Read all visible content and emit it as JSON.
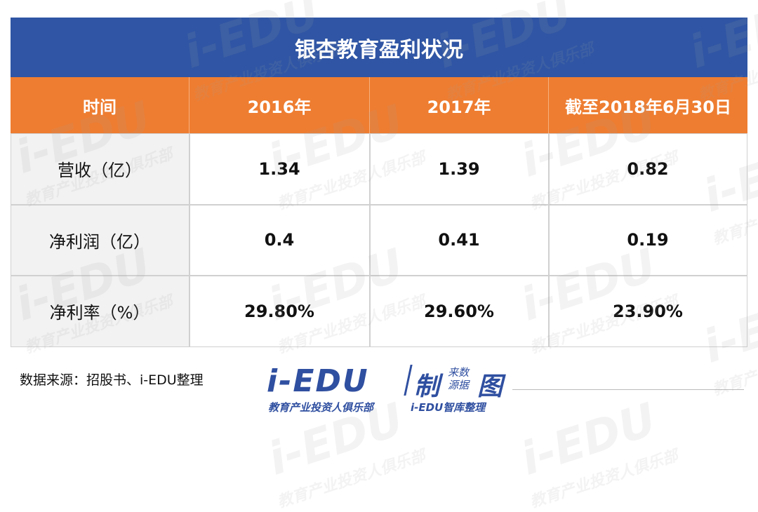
{
  "watermark": {
    "brand": "i-EDU",
    "club": "教育产业投资人俱乐部"
  },
  "table": {
    "title": "银杏教育盈利状况",
    "header": [
      "时间",
      "2016年",
      "2017年",
      "截至2018年6月30日"
    ],
    "rows": [
      [
        "营收（亿）",
        "1.34",
        "1.39",
        "0.82"
      ],
      [
        "净利润（亿）",
        "0.4",
        "0.41",
        "0.19"
      ],
      [
        "净利率（%）",
        "29.80%",
        "29.60%",
        "23.90%"
      ]
    ]
  },
  "footer": {
    "source": "数据来源：招股书、i-EDU整理",
    "logo": {
      "brand": "i-EDU",
      "mark": "制",
      "line1": "来数",
      "line2": "源据",
      "mark2": "图",
      "club": "教育产业投资人俱乐部",
      "credit": "i-EDU智库整理"
    }
  }
}
